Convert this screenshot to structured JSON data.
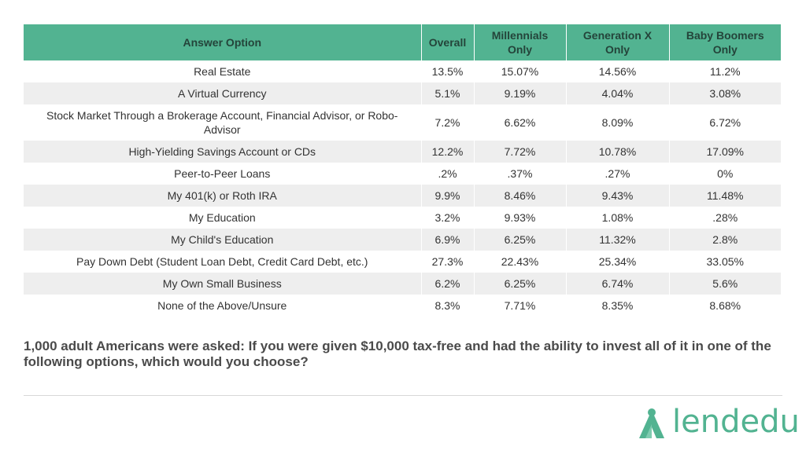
{
  "chart_data": {
    "type": "table",
    "columns": [
      "Answer Option",
      "Overall",
      "Millennials Only",
      "Generation X Only",
      "Baby Boomers Only"
    ],
    "rows": [
      [
        "Real Estate",
        "13.5%",
        "15.07%",
        "14.56%",
        "11.2%"
      ],
      [
        "A Virtual Currency",
        "5.1%",
        "9.19%",
        "4.04%",
        "3.08%"
      ],
      [
        "Stock Market Through a Brokerage Account, Financial Advisor, or Robo-Advisor",
        "7.2%",
        "6.62%",
        "8.09%",
        "6.72%"
      ],
      [
        "High-Yielding Savings Account or CDs",
        "12.2%",
        "7.72%",
        "10.78%",
        "17.09%"
      ],
      [
        "Peer-to-Peer Loans",
        ".2%",
        ".37%",
        ".27%",
        "0%"
      ],
      [
        "My 401(k) or Roth IRA",
        "9.9%",
        "8.46%",
        "9.43%",
        "11.48%"
      ],
      [
        "My Education",
        "3.2%",
        "9.93%",
        "1.08%",
        ".28%"
      ],
      [
        "My Child's Education",
        "6.9%",
        "6.25%",
        "11.32%",
        "2.8%"
      ],
      [
        "Pay Down Debt (Student Loan Debt, Credit Card Debt, etc.)",
        "27.3%",
        "22.43%",
        "25.34%",
        "33.05%"
      ],
      [
        "My Own Small Business",
        "6.2%",
        "6.25%",
        "6.74%",
        "5.6%"
      ],
      [
        "None of the Above/Unsure",
        "8.3%",
        "7.71%",
        "8.35%",
        "8.68%"
      ]
    ],
    "header_color": "#52b391",
    "stripe_color": "#eeeeee"
  },
  "caption": "1,000 adult Americans were asked: If you were given $10,000 tax-free and had the ability to invest all of it in one of the following options, which would you choose?",
  "logo": {
    "text": "lendedu",
    "icon": "lendedu-a-mark-icon",
    "color": "#52b391"
  }
}
